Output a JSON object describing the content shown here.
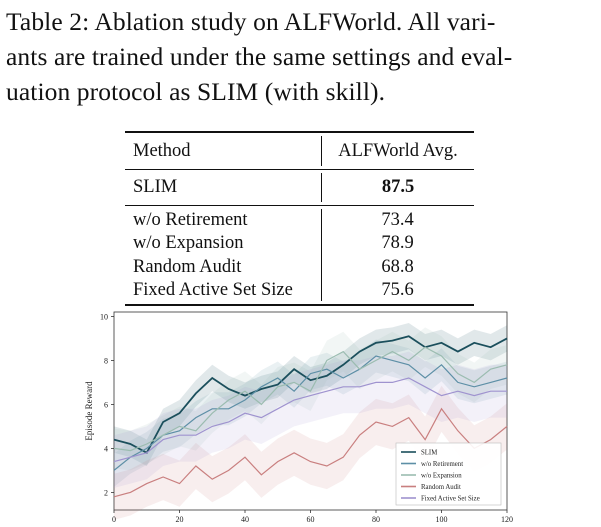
{
  "caption": {
    "lines": [
      "Table 2: Ablation study on ALFWorld. All vari-",
      "ants are trained under the same settings and eval-",
      "uation protocol as SLIM (with skill)."
    ]
  },
  "table": {
    "headers": [
      "Method",
      "ALFWorld Avg."
    ],
    "highlight_row": {
      "method": "SLIM",
      "value": "87.5"
    },
    "rows": [
      {
        "method": "w/o Retirement",
        "value": "73.4"
      },
      {
        "method": "w/o Expansion",
        "value": "78.9"
      },
      {
        "method": "Random Audit",
        "value": "68.8"
      },
      {
        "method": "Fixed Active Set Size",
        "value": "75.6"
      }
    ]
  },
  "chart_data": {
    "type": "line",
    "title": "",
    "xlabel": "",
    "ylabel": "Episode Reward",
    "xlim": [
      0,
      120
    ],
    "ylim": [
      1.2,
      10.2
    ],
    "xticks": [
      0,
      20,
      40,
      60,
      80,
      100,
      120
    ],
    "yticks": [
      2,
      4,
      6,
      8,
      10
    ],
    "legend_position": "lower-right",
    "grid": false,
    "shaded_bands": true,
    "x": [
      0,
      5,
      10,
      15,
      20,
      25,
      30,
      35,
      40,
      45,
      50,
      55,
      60,
      65,
      70,
      75,
      80,
      85,
      90,
      95,
      100,
      105,
      110,
      115,
      120
    ],
    "series": [
      {
        "name": "SLIM",
        "color": "#1b4f5c",
        "values": [
          4.4,
          4.2,
          3.8,
          5.2,
          5.6,
          6.5,
          7.2,
          6.7,
          6.4,
          6.7,
          6.9,
          7.6,
          7.1,
          7.3,
          7.8,
          8.4,
          8.8,
          8.9,
          9.1,
          8.6,
          8.8,
          8.4,
          8.8,
          8.6,
          9.0
        ]
      },
      {
        "name": "w/o Retirement",
        "color": "#5d8fa6",
        "values": [
          3.0,
          3.6,
          4.0,
          4.6,
          4.8,
          5.4,
          5.8,
          5.8,
          6.2,
          6.8,
          7.2,
          6.6,
          7.4,
          7.6,
          7.2,
          7.6,
          8.2,
          8.0,
          7.8,
          7.2,
          7.8,
          7.0,
          6.8,
          7.0,
          7.2
        ]
      },
      {
        "name": "w/o Expansion",
        "color": "#9bbcb0",
        "values": [
          4.0,
          3.9,
          4.2,
          4.6,
          5.0,
          4.8,
          5.6,
          6.2,
          6.6,
          6.0,
          6.8,
          7.0,
          6.6,
          8.0,
          8.4,
          7.6,
          8.0,
          8.4,
          8.0,
          8.6,
          8.2,
          7.4,
          7.0,
          7.6,
          7.8
        ]
      },
      {
        "name": "Random Audit",
        "color": "#c97f7f",
        "values": [
          1.8,
          2.0,
          2.4,
          2.7,
          2.4,
          3.2,
          2.6,
          3.0,
          3.6,
          2.8,
          3.4,
          3.8,
          3.4,
          3.2,
          3.6,
          4.6,
          5.2,
          5.0,
          5.4,
          4.4,
          5.8,
          4.8,
          4.0,
          4.4,
          5.0
        ]
      },
      {
        "name": "Fixed Active Set Size",
        "color": "#9f93cf",
        "values": [
          3.4,
          3.6,
          3.8,
          4.4,
          4.6,
          4.6,
          5.0,
          5.2,
          5.6,
          5.4,
          5.8,
          6.2,
          6.4,
          6.6,
          6.8,
          6.8,
          7.0,
          7.0,
          7.2,
          6.8,
          6.4,
          6.6,
          6.4,
          6.6,
          6.6
        ]
      }
    ]
  }
}
